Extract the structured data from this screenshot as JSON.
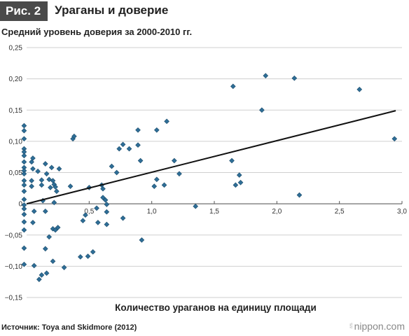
{
  "header": {
    "badge": "Рис. 2",
    "title": "Ураганы и доверие"
  },
  "chart_title": "Средний уровень доверия за 2000-2010 гг.",
  "source": "Источник: Toya and Skidmore (2012)",
  "brand": {
    "mark": "⁝⁞",
    "name": "nippon.com"
  },
  "colors": {
    "marker": "#2e6e97",
    "marker_stroke": "#1d4c6b",
    "trend": "#111111",
    "grid": "#cfcfcf"
  },
  "chart_data": {
    "type": "scatter",
    "title": "Средний уровень доверия за 2000-2010 гг.",
    "xlabel": "Количество ураганов на единицу площади",
    "ylabel": "",
    "xlim": [
      0,
      3.0
    ],
    "ylim": [
      -0.15,
      0.25
    ],
    "xticks": [
      "0,5",
      "1,0",
      "1,5",
      "2,0",
      "2,5",
      "3,0"
    ],
    "xtick_values": [
      0.5,
      1.0,
      1.5,
      2.0,
      2.5,
      3.0
    ],
    "yticks": [
      "0,25",
      "0,20",
      "0,15",
      "0,10",
      "0,05",
      "0",
      "−0,05",
      "−0,10",
      "−0,15"
    ],
    "ytick_values": [
      0.25,
      0.2,
      0.15,
      0.1,
      0.05,
      0,
      -0.05,
      -0.1,
      -0.15
    ],
    "grid": "horizontal",
    "trendline": {
      "x": [
        0,
        2.95
      ],
      "y": [
        0,
        0.149
      ]
    },
    "points": [
      {
        "x": -0.02,
        "y": 0.125
      },
      {
        "x": -0.02,
        "y": 0.117
      },
      {
        "x": -0.02,
        "y": 0.104
      },
      {
        "x": -0.02,
        "y": 0.088
      },
      {
        "x": -0.02,
        "y": 0.083
      },
      {
        "x": -0.02,
        "y": 0.077
      },
      {
        "x": -0.02,
        "y": 0.067
      },
      {
        "x": -0.02,
        "y": 0.058
      },
      {
        "x": -0.02,
        "y": 0.053
      },
      {
        "x": -0.02,
        "y": 0.048
      },
      {
        "x": -0.02,
        "y": 0.037
      },
      {
        "x": -0.02,
        "y": 0.03
      },
      {
        "x": -0.02,
        "y": 0.02
      },
      {
        "x": -0.02,
        "y": 0.007
      },
      {
        "x": -0.02,
        "y": -0.002
      },
      {
        "x": -0.02,
        "y": -0.008
      },
      {
        "x": -0.02,
        "y": -0.017
      },
      {
        "x": -0.02,
        "y": -0.029
      },
      {
        "x": -0.02,
        "y": -0.042
      },
      {
        "x": -0.02,
        "y": -0.071
      },
      {
        "x": -0.02,
        "y": -0.097
      },
      {
        "x": 0.04,
        "y": 0.067
      },
      {
        "x": 0.05,
        "y": 0.073
      },
      {
        "x": 0.05,
        "y": 0.056
      },
      {
        "x": 0.04,
        "y": 0.037
      },
      {
        "x": 0.04,
        "y": 0.028
      },
      {
        "x": 0.06,
        "y": -0.012
      },
      {
        "x": 0.05,
        "y": -0.03
      },
      {
        "x": 0.06,
        "y": -0.099
      },
      {
        "x": 0.09,
        "y": 0.052
      },
      {
        "x": 0.12,
        "y": 0.038
      },
      {
        "x": 0.12,
        "y": 0.03
      },
      {
        "x": 0.13,
        "y": 0.005
      },
      {
        "x": 0.1,
        "y": -0.121
      },
      {
        "x": 0.12,
        "y": -0.114
      },
      {
        "x": 0.15,
        "y": 0.064
      },
      {
        "x": 0.16,
        "y": 0.048
      },
      {
        "x": 0.15,
        "y": -0.012
      },
      {
        "x": 0.15,
        "y": -0.072
      },
      {
        "x": 0.16,
        "y": -0.111
      },
      {
        "x": 0.18,
        "y": 0.039
      },
      {
        "x": 0.19,
        "y": 0.026
      },
      {
        "x": 0.18,
        "y": -0.053
      },
      {
        "x": 0.2,
        "y": 0.058
      },
      {
        "x": 0.21,
        "y": 0.037
      },
      {
        "x": 0.22,
        "y": 0.031
      },
      {
        "x": 0.22,
        "y": 0.002
      },
      {
        "x": 0.21,
        "y": -0.04
      },
      {
        "x": 0.21,
        "y": -0.092
      },
      {
        "x": 0.23,
        "y": 0.027
      },
      {
        "x": 0.23,
        "y": -0.042
      },
      {
        "x": 0.24,
        "y": 0.02
      },
      {
        "x": 0.25,
        "y": -0.038
      },
      {
        "x": 0.26,
        "y": 0.056
      },
      {
        "x": 0.3,
        "y": -0.102
      },
      {
        "x": 0.35,
        "y": 0.028
      },
      {
        "x": 0.37,
        "y": 0.104
      },
      {
        "x": 0.38,
        "y": 0.108
      },
      {
        "x": 0.43,
        "y": -0.085
      },
      {
        "x": 0.45,
        "y": -0.027
      },
      {
        "x": 0.47,
        "y": -0.018
      },
      {
        "x": 0.49,
        "y": -0.084
      },
      {
        "x": 0.5,
        "y": 0.026
      },
      {
        "x": 0.53,
        "y": -0.077
      },
      {
        "x": 0.56,
        "y": -0.007
      },
      {
        "x": 0.57,
        "y": -0.03
      },
      {
        "x": 0.6,
        "y": 0.03
      },
      {
        "x": 0.61,
        "y": 0.024
      },
      {
        "x": 0.61,
        "y": 0.01
      },
      {
        "x": 0.63,
        "y": 0.006
      },
      {
        "x": 0.64,
        "y": -0.001
      },
      {
        "x": 0.64,
        "y": -0.013
      },
      {
        "x": 0.64,
        "y": -0.033
      },
      {
        "x": 0.68,
        "y": 0.06
      },
      {
        "x": 0.72,
        "y": 0.05
      },
      {
        "x": 0.74,
        "y": 0.088
      },
      {
        "x": 0.77,
        "y": 0.095
      },
      {
        "x": 0.77,
        "y": -0.023
      },
      {
        "x": 0.82,
        "y": 0.088
      },
      {
        "x": 0.89,
        "y": 0.094
      },
      {
        "x": 0.89,
        "y": 0.118
      },
      {
        "x": 0.91,
        "y": 0.069
      },
      {
        "x": 0.92,
        "y": -0.058
      },
      {
        "x": 1.02,
        "y": 0.028
      },
      {
        "x": 1.04,
        "y": 0.039
      },
      {
        "x": 1.04,
        "y": 0.118
      },
      {
        "x": 1.1,
        "y": 0.03
      },
      {
        "x": 1.12,
        "y": 0.132
      },
      {
        "x": 1.18,
        "y": 0.069
      },
      {
        "x": 1.22,
        "y": 0.048
      },
      {
        "x": 1.35,
        "y": -0.004
      },
      {
        "x": 1.64,
        "y": 0.069
      },
      {
        "x": 1.65,
        "y": 0.188
      },
      {
        "x": 1.67,
        "y": 0.03
      },
      {
        "x": 1.7,
        "y": 0.046
      },
      {
        "x": 1.71,
        "y": 0.034
      },
      {
        "x": 1.88,
        "y": 0.15
      },
      {
        "x": 1.91,
        "y": 0.205
      },
      {
        "x": 2.14,
        "y": 0.201
      },
      {
        "x": 2.18,
        "y": 0.014
      },
      {
        "x": 2.66,
        "y": 0.183
      },
      {
        "x": 2.94,
        "y": 0.104
      }
    ]
  }
}
